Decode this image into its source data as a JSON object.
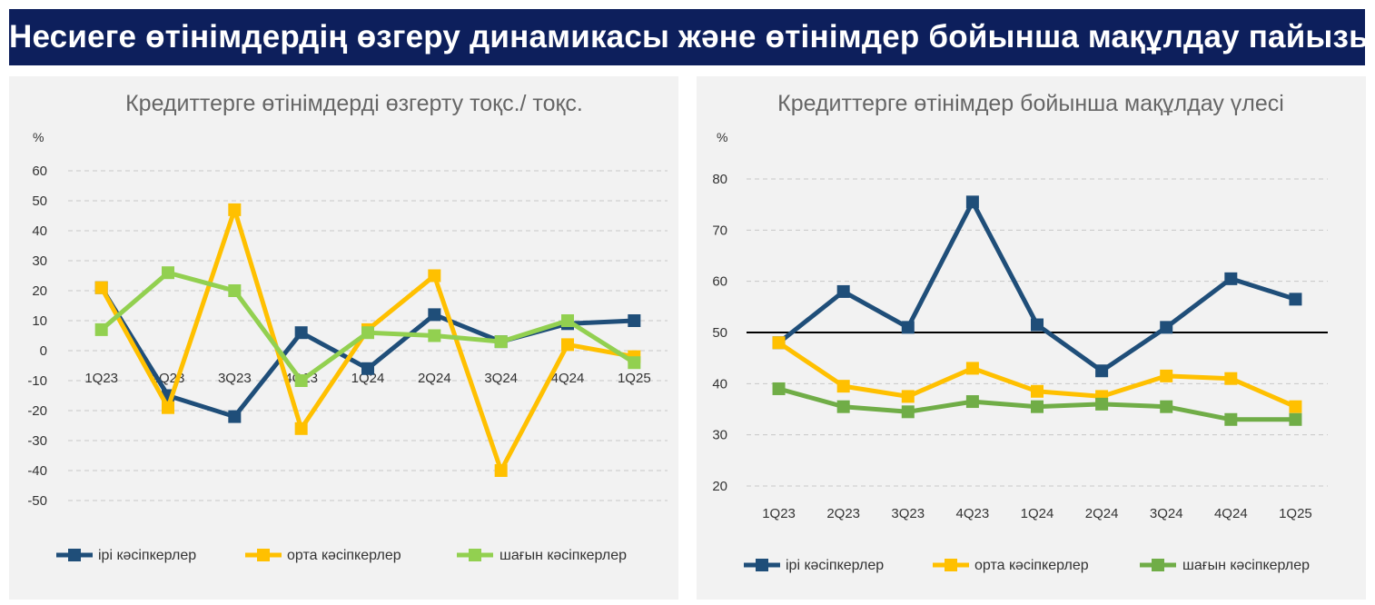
{
  "header": {
    "title": "Несиеге өтінімдердің өзгеру динамикасы және өтінімдер бойынша мақұлдау пайызы"
  },
  "colors": {
    "banner_bg": "#0d1f5c",
    "large": "#1f4e79",
    "medium": "#ffc000",
    "small_left": "#92d050",
    "small_right": "#70ad47"
  },
  "chart_data": [
    {
      "type": "line",
      "title": "Кредиттерге өтінімдерді өзгерту тоқс./ тоқс.",
      "ylabel": "%",
      "categories": [
        "1Q23",
        "2Q23",
        "3Q23",
        "4Q23",
        "1Q24",
        "2Q24",
        "3Q24",
        "4Q24",
        "1Q25"
      ],
      "ylim": [
        -50,
        60
      ],
      "yticks": [
        60,
        50,
        40,
        30,
        20,
        10,
        0,
        -10,
        -20,
        -30,
        -40,
        -50
      ],
      "grid": true,
      "legend_position": "bottom",
      "series": [
        {
          "name": "ірі кәсіпкерлер",
          "color": "#1f4e79",
          "values": [
            21,
            -15,
            -22,
            6,
            -6,
            12,
            3,
            9,
            10
          ]
        },
        {
          "name": "орта кәсіпкерлер",
          "color": "#ffc000",
          "values": [
            21,
            -19,
            47,
            -26,
            7,
            25,
            -40,
            2,
            -2
          ]
        },
        {
          "name": "шағын кәсіпкерлер",
          "color": "#92d050",
          "values": [
            7,
            26,
            20,
            -10,
            6,
            5,
            3,
            10,
            -4
          ]
        }
      ]
    },
    {
      "type": "line",
      "title": "Кредиттерге өтінімдер бойынша мақұлдау үлесі",
      "ylabel": "%",
      "categories": [
        "1Q23",
        "2Q23",
        "3Q23",
        "4Q23",
        "1Q24",
        "2Q24",
        "3Q24",
        "4Q24",
        "1Q25"
      ],
      "ylim": [
        20,
        80
      ],
      "yticks": [
        80,
        70,
        60,
        50,
        40,
        30,
        20
      ],
      "grid": true,
      "reference_line": 50,
      "legend_position": "bottom",
      "series": [
        {
          "name": "ірі кәсіпкерлер",
          "color": "#1f4e79",
          "values": [
            48,
            58,
            51,
            75.5,
            51.5,
            42.5,
            51,
            60.5,
            56.5
          ]
        },
        {
          "name": "орта кәсіпкерлер",
          "color": "#ffc000",
          "values": [
            48,
            39.5,
            37.5,
            43,
            38.5,
            37.5,
            41.5,
            41,
            35.5
          ]
        },
        {
          "name": "шағын кәсіпкерлер",
          "color": "#70ad47",
          "values": [
            39,
            35.5,
            34.5,
            36.5,
            35.5,
            36,
            35.5,
            33,
            33
          ]
        }
      ]
    }
  ]
}
